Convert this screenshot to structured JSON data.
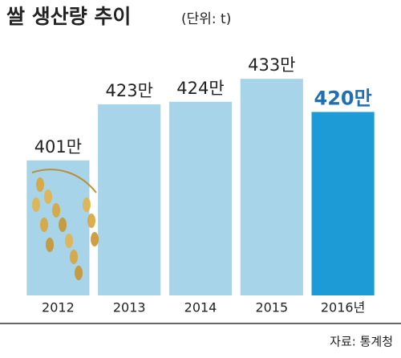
{
  "chart_data": {
    "type": "bar",
    "title": "쌀 생산량 추이",
    "subtitle": "(단위: t)",
    "categories": [
      "2012",
      "2013",
      "2014",
      "2015",
      "2016년"
    ],
    "values": [
      401,
      423,
      424,
      433,
      420
    ],
    "value_labels": [
      "401만",
      "423만",
      "424만",
      "433만",
      "420만"
    ],
    "colors": [
      "#a8d4ea",
      "#a8d4ea",
      "#a8d4ea",
      "#a8d4ea",
      "#1c9bd7"
    ],
    "value_label_colors": [
      "#222222",
      "#222222",
      "#222222",
      "#222222",
      "#1f6fb2"
    ],
    "ylim": [
      348,
      440
    ],
    "source": "자료: 통계청"
  }
}
